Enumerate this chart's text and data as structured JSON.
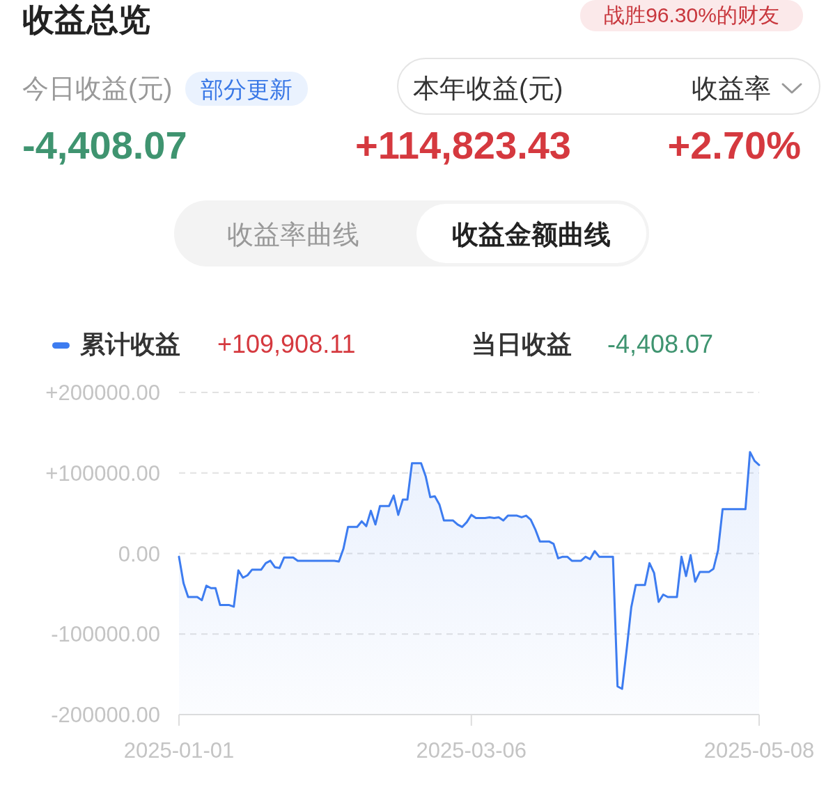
{
  "chart_data": {
    "type": "line",
    "title": "收益总览",
    "annotations": [
      "战胜96.30%的财友",
      "今日收益(元)",
      "部分更新",
      "本年收益(元)",
      "收益率",
      "-4,408.07",
      "+114,823.43",
      "+2.70%",
      "收益率曲线",
      "收益金额曲线",
      "+109,908.11",
      "当日收益",
      "-4,408.07"
    ],
    "x": [
      "2025-01-01",
      "2025-01-02",
      "2025-01-03",
      "2025-01-05",
      "2025-01-06",
      "2025-01-07",
      "2025-01-08",
      "2025-01-09",
      "2025-01-10",
      "2025-01-12",
      "2025-01-13",
      "2025-01-14",
      "2025-01-15",
      "2025-01-16",
      "2025-01-17",
      "2025-01-19",
      "2025-01-20",
      "2025-01-21",
      "2025-01-22",
      "2025-01-23",
      "2025-01-24",
      "2025-01-26",
      "2025-01-27",
      "2025-02-04",
      "2025-02-05",
      "2025-02-06",
      "2025-02-07",
      "2025-02-09",
      "2025-02-10",
      "2025-02-11",
      "2025-02-12",
      "2025-02-13",
      "2025-02-14",
      "2025-02-16",
      "2025-02-17",
      "2025-02-18",
      "2025-02-19",
      "2025-02-20",
      "2025-02-21",
      "2025-02-23",
      "2025-02-24",
      "2025-02-25",
      "2025-02-26",
      "2025-02-27",
      "2025-02-28",
      "2025-03-02",
      "2025-03-03",
      "2025-03-04",
      "2025-03-05",
      "2025-03-06",
      "2025-03-07",
      "2025-03-09",
      "2025-03-10",
      "2025-03-11",
      "2025-03-12",
      "2025-03-13",
      "2025-03-14",
      "2025-03-16",
      "2025-03-17",
      "2025-03-18",
      "2025-03-19",
      "2025-03-20",
      "2025-03-21",
      "2025-03-23",
      "2025-03-24",
      "2025-03-25",
      "2025-03-26",
      "2025-03-27",
      "2025-03-28",
      "2025-03-30",
      "2025-03-31",
      "2025-04-01",
      "2025-04-02",
      "2025-04-03",
      "2025-04-06",
      "2025-04-07",
      "2025-04-08",
      "2025-04-09",
      "2025-04-10",
      "2025-04-11",
      "2025-04-13",
      "2025-04-14",
      "2025-04-15",
      "2025-04-16",
      "2025-04-17",
      "2025-04-18",
      "2025-04-20",
      "2025-04-21",
      "2025-04-22",
      "2025-04-23",
      "2025-04-24",
      "2025-04-25",
      "2025-04-27",
      "2025-04-28",
      "2025-04-29",
      "2025-04-30",
      "2025-05-05",
      "2025-05-06",
      "2025-05-07",
      "2025-05-08"
    ],
    "series": [
      {
        "name": "累计收益",
        "color": "#3d7cf0",
        "values": [
          -4000,
          -37000,
          -54000,
          -54000,
          -58000,
          -40000,
          -43000,
          -43000,
          -64000,
          -64000,
          -66000,
          -21000,
          -30000,
          -27000,
          -20000,
          -20000,
          -12000,
          -9000,
          -17000,
          -18000,
          -5000,
          -5000,
          -9000,
          -9000,
          -10000,
          6000,
          33000,
          33000,
          40000,
          34000,
          53000,
          36000,
          59000,
          59000,
          72000,
          48000,
          67000,
          67000,
          112000,
          112000,
          96000,
          70000,
          71000,
          61000,
          41000,
          41000,
          36000,
          33000,
          39000,
          48000,
          44000,
          44000,
          45000,
          44000,
          45000,
          41000,
          47000,
          47000,
          45000,
          47000,
          42000,
          30000,
          15000,
          15000,
          12000,
          -6000,
          -4000,
          -4000,
          -9000,
          -9000,
          -4000,
          -7000,
          3000,
          -4000,
          -4000,
          -165000,
          -168000,
          -119000,
          -67000,
          -39000,
          -39000,
          -12000,
          -24000,
          -60000,
          -51000,
          -54000,
          -54000,
          -4000,
          -28000,
          -2000,
          -35000,
          -23000,
          -23000,
          -19000,
          4000,
          55000,
          55000,
          126000,
          115000,
          109908.11
        ]
      }
    ],
    "xlim": [
      "2025-01-01",
      "2025-05-08"
    ],
    "xticks": [
      "2025-01-01",
      "2025-03-06",
      "2025-05-08"
    ],
    "ylim": [
      -200000,
      200000
    ],
    "yticks": [
      {
        "value": -200000,
        "label": "-200000.00"
      },
      {
        "value": -100000,
        "label": "-100000.00"
      },
      {
        "value": 0,
        "label": "0.00"
      },
      {
        "value": 100000,
        "label": "+100000.00"
      },
      {
        "value": 200000,
        "label": "+200000.00"
      }
    ],
    "grid": "y",
    "legend": "top left"
  }
}
